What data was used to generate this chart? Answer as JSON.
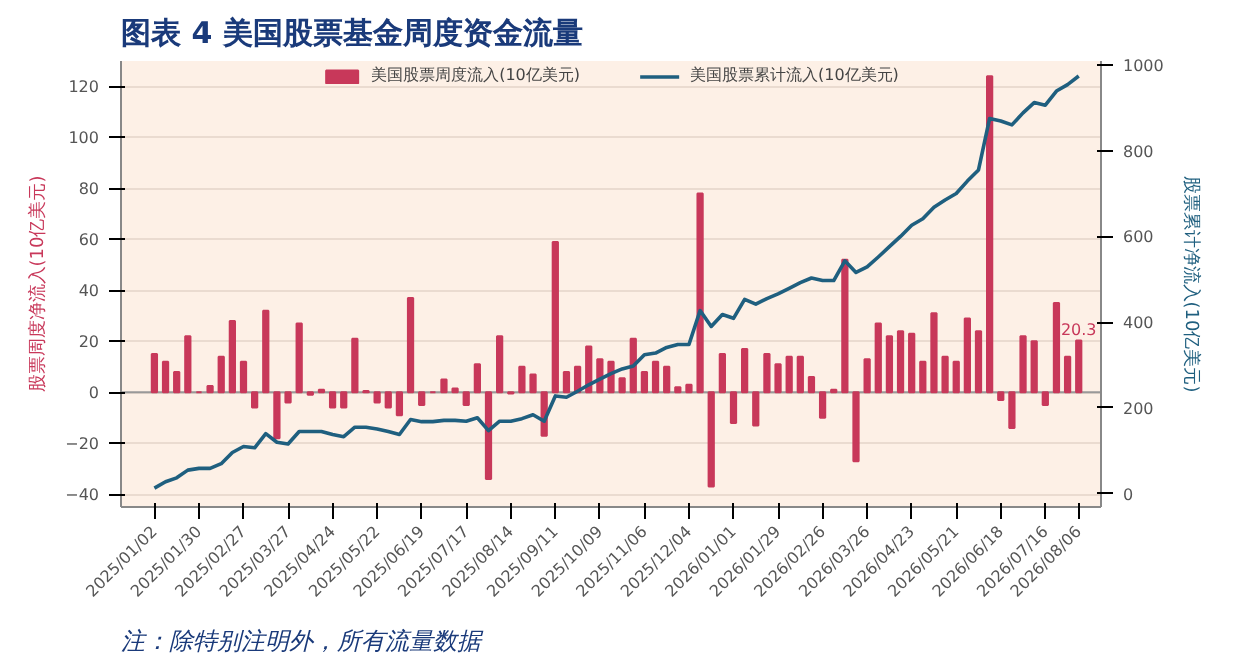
{
  "chart_data": {
    "type": "bar",
    "title": "图表 4   美国股票基金周度资金流量",
    "ylabel": "股票周度净流入(10亿美元)",
    "y2label": "股票累计净流入(10亿美元)",
    "x": [
      "2025-01-02",
      "2025-01-09",
      "2025-01-16",
      "2025-01-23",
      "2025-01-30",
      "2025-02-06",
      "2025-02-13",
      "2025-02-20",
      "2025-02-27",
      "2025-03-06",
      "2025-03-13",
      "2025-03-20",
      "2025-03-27",
      "2025-04-03",
      "2025-04-10",
      "2025-04-17",
      "2025-04-24",
      "2025-05-01",
      "2025-05-08",
      "2025-05-15",
      "2025-05-22",
      "2025-05-29",
      "2025-06-05",
      "2025-06-12",
      "2025-06-19",
      "2025-06-26",
      "2025-07-03",
      "2025-07-10",
      "2025-07-17",
      "2025-07-24",
      "2025-07-31",
      "2025-08-07",
      "2025-08-14",
      "2025-08-21",
      "2025-08-28",
      "2025-09-04",
      "2025-09-11",
      "2025-09-18",
      "2025-09-25",
      "2025-10-02",
      "2025-10-09",
      "2025-10-16",
      "2025-10-23",
      "2025-10-30",
      "2025-11-06",
      "2025-11-13",
      "2025-11-20",
      "2025-11-27",
      "2025-12-04",
      "2025-12-11",
      "2025-12-18",
      "2025-12-25",
      "2026-01-01",
      "2026-01-08",
      "2026-01-15",
      "2026-01-22",
      "2026-01-29",
      "2026-02-05",
      "2026-02-12",
      "2026-02-19",
      "2026-02-26",
      "2026-03-05",
      "2026-03-12",
      "2026-03-19",
      "2026-03-26",
      "2026-04-02",
      "2026-04-09",
      "2026-04-16",
      "2026-04-23",
      "2026-04-30",
      "2026-05-07",
      "2026-05-14",
      "2026-05-21",
      "2026-05-28",
      "2026-06-04",
      "2026-06-11",
      "2026-06-18",
      "2026-06-25",
      "2026-07-02",
      "2026-07-09",
      "2026-07-16",
      "2026-07-23",
      "2026-07-30",
      "2026-08-06"
    ],
    "series": [
      {
        "name": "美国股票周度流入(10亿美元)",
        "color": "#c8385a",
        "values": [
          15,
          12,
          8,
          22,
          0,
          2.5,
          14,
          28,
          12,
          -6,
          32,
          -18,
          -4,
          27,
          -1,
          1,
          -6,
          -6,
          21,
          0.5,
          -4,
          -6,
          -9,
          37,
          -5,
          0,
          5,
          1.5,
          -5,
          11,
          -34,
          22,
          -0.5,
          10,
          7,
          -17,
          59,
          8,
          10,
          18,
          13,
          12,
          5.5,
          21,
          8,
          12,
          10,
          2,
          3,
          78,
          -37,
          15,
          -12,
          17,
          -13,
          15,
          11,
          14,
          14,
          6,
          -10,
          1,
          52,
          -27,
          13,
          27,
          22,
          24,
          23,
          12,
          31,
          14,
          12,
          29,
          24,
          124,
          -3,
          -14,
          22,
          20,
          -5,
          35,
          14,
          20.3
        ]
      },
      {
        "name": "美国股票累计流入(10亿美元)",
        "type": "line",
        "axis": "y2",
        "color": "#1f5f7f",
        "values": [
          13,
          28,
          37,
          55,
          59,
          59,
          70,
          96,
          110,
          107,
          140,
          120,
          116,
          145,
          145,
          145,
          138,
          133,
          155,
          155,
          151,
          145,
          138,
          173,
          168,
          168,
          171,
          171,
          169,
          177,
          147,
          169,
          169,
          175,
          184,
          169,
          228,
          225,
          239,
          254,
          267,
          280,
          291,
          298,
          324,
          328,
          341,
          348,
          348,
          427,
          390,
          418,
          409,
          453,
          442,
          455,
          466,
          479,
          492,
          503,
          497,
          497,
          543,
          516,
          529,
          552,
          576,
          600,
          626,
          641,
          668,
          685,
          700,
          729,
          755,
          875,
          869,
          860,
          888,
          912,
          906,
          939,
          954,
          974
        ]
      }
    ],
    "xticks": [
      {
        "value": "2025-01-02",
        "label": "2025/01/02"
      },
      {
        "value": "2025-01-30",
        "label": "2025/01/30"
      },
      {
        "value": "2025-02-27",
        "label": "2025/02/27"
      },
      {
        "value": "2025-03-27",
        "label": "2025/03/27"
      },
      {
        "value": "2025-04-24",
        "label": "2025/04/24"
      },
      {
        "value": "2025-05-22",
        "label": "2025/05/22"
      },
      {
        "value": "2025-06-19",
        "label": "2025/06/19"
      },
      {
        "value": "2025-07-17",
        "label": "2025/07/17"
      },
      {
        "value": "2025-08-14",
        "label": "2025/08/14"
      },
      {
        "value": "2025-09-11",
        "label": "2025/09/11"
      },
      {
        "value": "2025-10-09",
        "label": "2025/10/09"
      },
      {
        "value": "2025-11-06",
        "label": "2025/11/06"
      },
      {
        "value": "2025-12-04",
        "label": "2025/12/04"
      },
      {
        "value": "2026-01-01",
        "label": "2026/01/01"
      },
      {
        "value": "2026-01-29",
        "label": "2026/01/29"
      },
      {
        "value": "2026-02-26",
        "label": "2026/02/26"
      },
      {
        "value": "2026-03-26",
        "label": "2026/03/26"
      },
      {
        "value": "2026-04-23",
        "label": "2026/04/23"
      },
      {
        "value": "2026-05-21",
        "label": "2026/05/21"
      },
      {
        "value": "2026-06-18",
        "label": "2026/06/18"
      },
      {
        "value": "2026-07-16",
        "label": "2026/07/16"
      },
      {
        "value": "2026-08-06",
        "label": "2026/08/06"
      }
    ],
    "xlim": [
      "2024-12-12",
      "2026-08-20"
    ],
    "ylim": [
      -45,
      130
    ],
    "yticks": [
      -40,
      -20,
      0,
      20,
      40,
      60,
      80,
      100,
      120
    ],
    "y2lim": [
      -31,
      1009
    ],
    "y2ticks": [
      0,
      200,
      400,
      600,
      800,
      1000
    ],
    "grid": "y",
    "legend": "top",
    "annotations": [
      {
        "text": "20.3",
        "x": "2026-08-06",
        "y": 20.3
      },
      "注：除特别注明外，所有流量数据"
    ]
  }
}
